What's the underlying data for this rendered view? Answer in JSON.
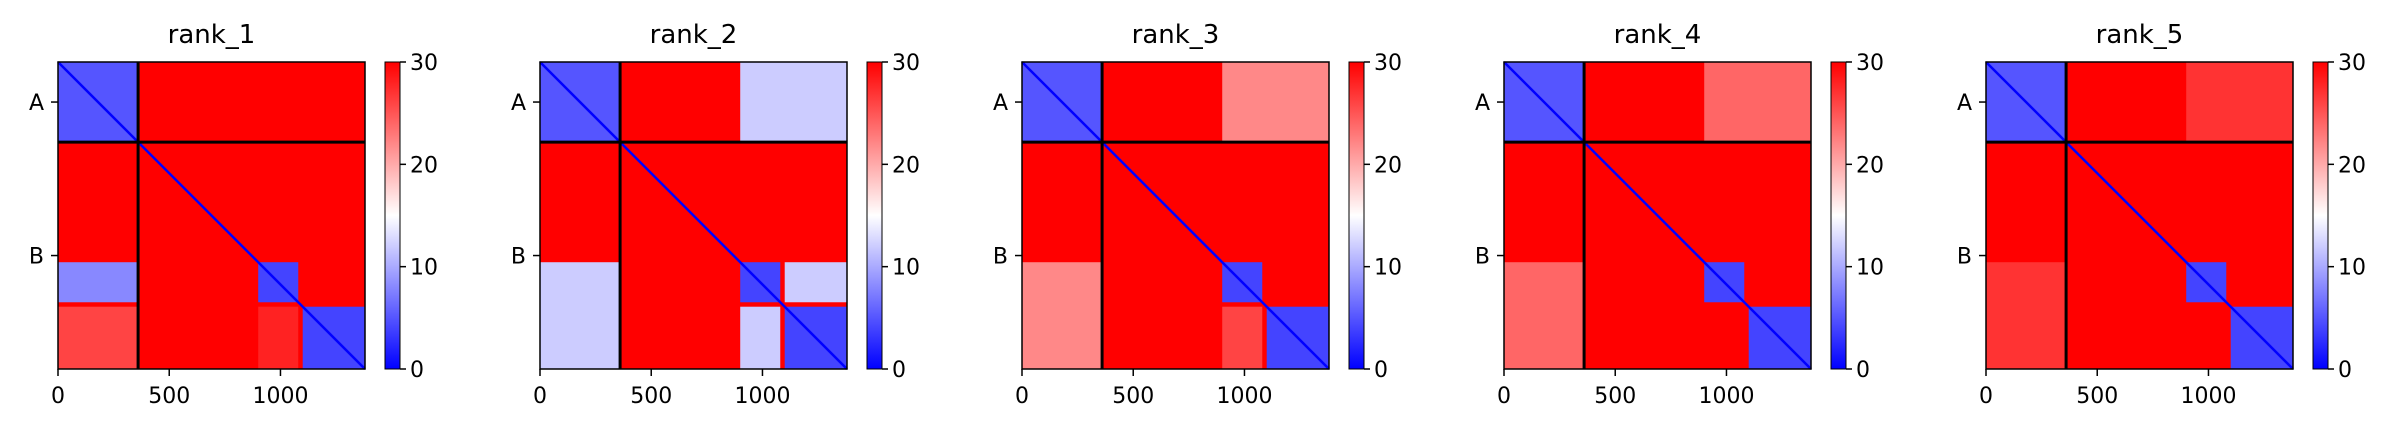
{
  "colors": {
    "low": "#0000ff",
    "mid": "#ffffff",
    "high": "#ff0000",
    "divider": "#000000"
  },
  "chart_data": [
    {
      "type": "heatmap",
      "title": "rank_1",
      "x_ticks": [
        0,
        500,
        1000
      ],
      "xlim": [
        0,
        1380
      ],
      "chain_labels": [
        "A",
        "B"
      ],
      "chain_boundary": 360,
      "colorbar": {
        "ticks": [
          0,
          10,
          20,
          30
        ],
        "range": [
          0,
          30
        ]
      },
      "blocks": [
        {
          "rows": [
            0,
            360
          ],
          "cols": [
            0,
            360
          ],
          "value": 5
        },
        {
          "rows": [
            0,
            360
          ],
          "cols": [
            360,
            1380
          ],
          "value": 30
        },
        {
          "rows": [
            360,
            1380
          ],
          "cols": [
            0,
            360
          ],
          "value": 30
        },
        {
          "rows": [
            360,
            1380
          ],
          "cols": [
            360,
            1380
          ],
          "value": 30
        },
        {
          "rows": [
            900,
            1080
          ],
          "cols": [
            900,
            1080
          ],
          "value": 4
        },
        {
          "rows": [
            1100,
            1380
          ],
          "cols": [
            1100,
            1380
          ],
          "value": 4
        },
        {
          "rows": [
            900,
            1080
          ],
          "cols": [
            0,
            360
          ],
          "value": 8
        },
        {
          "rows": [
            1100,
            1380
          ],
          "cols": [
            0,
            360
          ],
          "value": 26
        },
        {
          "rows": [
            1100,
            1380
          ],
          "cols": [
            900,
            1080
          ],
          "value": 28
        }
      ]
    },
    {
      "type": "heatmap",
      "title": "rank_2",
      "x_ticks": [
        0,
        500,
        1000
      ],
      "xlim": [
        0,
        1380
      ],
      "chain_labels": [
        "A",
        "B"
      ],
      "chain_boundary": 360,
      "colorbar": {
        "ticks": [
          0,
          10,
          20,
          30
        ],
        "range": [
          0,
          30
        ]
      },
      "blocks": [
        {
          "rows": [
            0,
            360
          ],
          "cols": [
            0,
            360
          ],
          "value": 5
        },
        {
          "rows": [
            0,
            360
          ],
          "cols": [
            360,
            1380
          ],
          "value": 30
        },
        {
          "rows": [
            360,
            1380
          ],
          "cols": [
            0,
            360
          ],
          "value": 30
        },
        {
          "rows": [
            360,
            1380
          ],
          "cols": [
            360,
            1380
          ],
          "value": 30
        },
        {
          "rows": [
            900,
            1080
          ],
          "cols": [
            900,
            1080
          ],
          "value": 4
        },
        {
          "rows": [
            1100,
            1380
          ],
          "cols": [
            1100,
            1380
          ],
          "value": 4
        },
        {
          "rows": [
            0,
            360
          ],
          "cols": [
            900,
            1380
          ],
          "value": 12
        },
        {
          "rows": [
            900,
            1380
          ],
          "cols": [
            0,
            360
          ],
          "value": 12
        },
        {
          "rows": [
            900,
            1080
          ],
          "cols": [
            1100,
            1380
          ],
          "value": 12
        },
        {
          "rows": [
            1100,
            1380
          ],
          "cols": [
            900,
            1080
          ],
          "value": 12
        }
      ]
    },
    {
      "type": "heatmap",
      "title": "rank_3",
      "x_ticks": [
        0,
        500,
        1000
      ],
      "xlim": [
        0,
        1380
      ],
      "chain_labels": [
        "A",
        "B"
      ],
      "chain_boundary": 360,
      "colorbar": {
        "ticks": [
          0,
          10,
          20,
          30
        ],
        "range": [
          0,
          30
        ]
      },
      "blocks": [
        {
          "rows": [
            0,
            360
          ],
          "cols": [
            0,
            360
          ],
          "value": 5
        },
        {
          "rows": [
            0,
            360
          ],
          "cols": [
            360,
            1380
          ],
          "value": 30
        },
        {
          "rows": [
            360,
            1380
          ],
          "cols": [
            0,
            360
          ],
          "value": 30
        },
        {
          "rows": [
            360,
            1380
          ],
          "cols": [
            360,
            1380
          ],
          "value": 30
        },
        {
          "rows": [
            900,
            1080
          ],
          "cols": [
            900,
            1080
          ],
          "value": 4
        },
        {
          "rows": [
            1100,
            1380
          ],
          "cols": [
            1100,
            1380
          ],
          "value": 4
        },
        {
          "rows": [
            0,
            360
          ],
          "cols": [
            900,
            1380
          ],
          "value": 22
        },
        {
          "rows": [
            900,
            1380
          ],
          "cols": [
            0,
            360
          ],
          "value": 22
        },
        {
          "rows": [
            1100,
            1380
          ],
          "cols": [
            900,
            1080
          ],
          "value": 26
        }
      ]
    },
    {
      "type": "heatmap",
      "title": "rank_4",
      "x_ticks": [
        0,
        500,
        1000
      ],
      "xlim": [
        0,
        1380
      ],
      "chain_labels": [
        "A",
        "B"
      ],
      "chain_boundary": 360,
      "colorbar": {
        "ticks": [
          0,
          10,
          20,
          30
        ],
        "range": [
          0,
          30
        ]
      },
      "blocks": [
        {
          "rows": [
            0,
            360
          ],
          "cols": [
            0,
            360
          ],
          "value": 5
        },
        {
          "rows": [
            0,
            360
          ],
          "cols": [
            360,
            1380
          ],
          "value": 30
        },
        {
          "rows": [
            360,
            1380
          ],
          "cols": [
            0,
            360
          ],
          "value": 30
        },
        {
          "rows": [
            360,
            1380
          ],
          "cols": [
            360,
            1380
          ],
          "value": 30
        },
        {
          "rows": [
            900,
            1080
          ],
          "cols": [
            900,
            1080
          ],
          "value": 4
        },
        {
          "rows": [
            1100,
            1380
          ],
          "cols": [
            1100,
            1380
          ],
          "value": 4
        },
        {
          "rows": [
            0,
            360
          ],
          "cols": [
            900,
            1380
          ],
          "value": 24
        },
        {
          "rows": [
            900,
            1380
          ],
          "cols": [
            0,
            360
          ],
          "value": 24
        }
      ]
    },
    {
      "type": "heatmap",
      "title": "rank_5",
      "x_ticks": [
        0,
        500,
        1000
      ],
      "xlim": [
        0,
        1380
      ],
      "chain_labels": [
        "A",
        "B"
      ],
      "chain_boundary": 360,
      "colorbar": {
        "ticks": [
          0,
          10,
          20,
          30
        ],
        "range": [
          0,
          30
        ]
      },
      "blocks": [
        {
          "rows": [
            0,
            360
          ],
          "cols": [
            0,
            360
          ],
          "value": 5
        },
        {
          "rows": [
            0,
            360
          ],
          "cols": [
            360,
            1380
          ],
          "value": 30
        },
        {
          "rows": [
            360,
            1380
          ],
          "cols": [
            0,
            360
          ],
          "value": 30
        },
        {
          "rows": [
            360,
            1380
          ],
          "cols": [
            360,
            1380
          ],
          "value": 30
        },
        {
          "rows": [
            900,
            1080
          ],
          "cols": [
            900,
            1080
          ],
          "value": 4
        },
        {
          "rows": [
            1100,
            1380
          ],
          "cols": [
            1100,
            1380
          ],
          "value": 4
        },
        {
          "rows": [
            0,
            360
          ],
          "cols": [
            900,
            1380
          ],
          "value": 27
        },
        {
          "rows": [
            900,
            1380
          ],
          "cols": [
            0,
            360
          ],
          "value": 27
        }
      ]
    }
  ]
}
